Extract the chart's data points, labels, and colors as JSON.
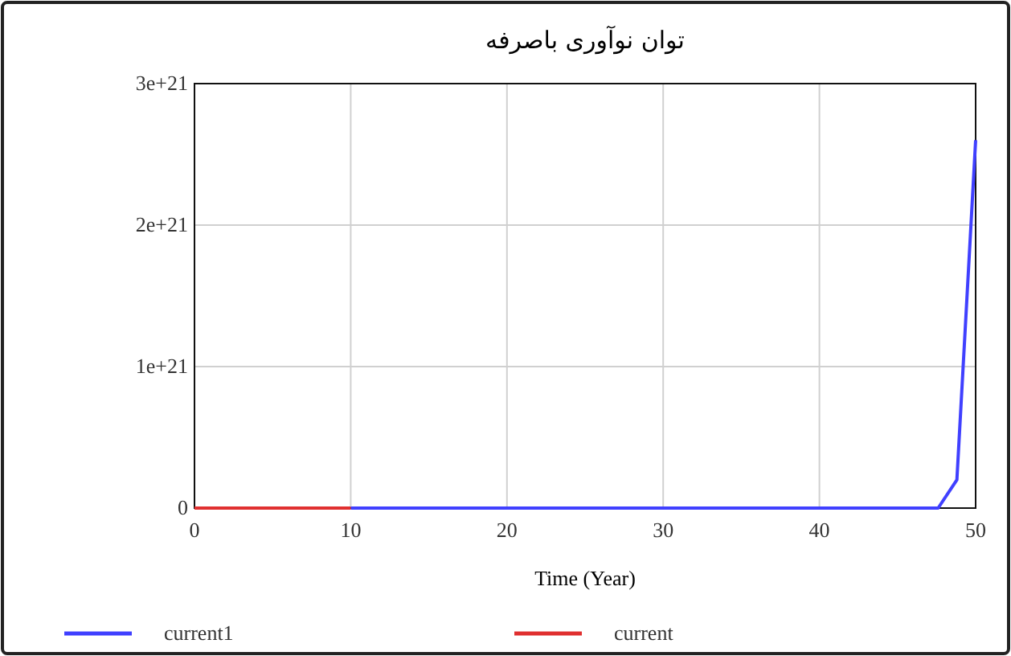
{
  "chart_data": {
    "type": "line",
    "title": "توان نوآوری باصرفه",
    "xlabel": "Time (Year)",
    "xlim": [
      0,
      50
    ],
    "xticks": [
      0,
      10,
      20,
      30,
      40,
      50
    ],
    "ylim": [
      0,
      3e+21
    ],
    "yticks": [
      0,
      {
        "value": 1e+21,
        "label": "1e+21"
      },
      {
        "value": 2e+21,
        "label": "2e+21"
      },
      {
        "value": 3e+21,
        "label": "3e+21"
      }
    ],
    "grid": true,
    "legend": "bottom",
    "line_style": "solid",
    "series": [
      {
        "name": "current1",
        "color": "#4040ff",
        "x": [
          10,
          20,
          30,
          40,
          47.6,
          48.8,
          50
        ],
        "values": [
          0,
          0,
          0,
          0,
          0,
          2e+20,
          2.6e+21
        ]
      },
      {
        "name": "current",
        "color": "#e03030",
        "x": [
          0,
          10
        ],
        "values": [
          0,
          0
        ]
      }
    ]
  }
}
